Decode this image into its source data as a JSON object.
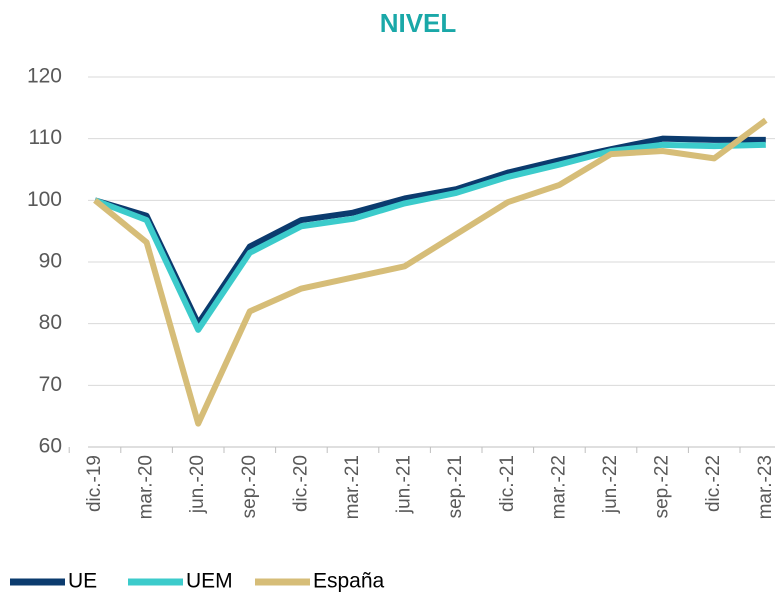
{
  "chart_data": {
    "type": "line",
    "title": "NIVEL",
    "categories": [
      "dic.-19",
      "mar.-20",
      "jun.-20",
      "sep.-20",
      "dic.-20",
      "mar.-21",
      "jun.-21",
      "sep.-21",
      "dic.-21",
      "mar.-22",
      "jun.-22",
      "sep.-22",
      "dic.-22",
      "mar.-23"
    ],
    "series": [
      {
        "name": "UE",
        "color": "#0b3b6e",
        "values": [
          100,
          97.5,
          80,
          92.5,
          96.8,
          98,
          100.3,
          101.8,
          104.5,
          106.5,
          108.3,
          110,
          109.8,
          109.8
        ]
      },
      {
        "name": "UEM",
        "color": "#3ccbcb",
        "values": [
          100,
          96.8,
          79,
          91.5,
          95.8,
          97,
          99.5,
          101.2,
          103.8,
          105.8,
          108,
          109,
          108.8,
          109
        ]
      },
      {
        "name": "España",
        "color": "#d6bd78",
        "values": [
          100,
          93.2,
          63.8,
          82,
          85.7,
          87.5,
          89.3,
          94.5,
          99.7,
          102.5,
          107.5,
          108,
          106.8,
          113
        ]
      }
    ],
    "ylim": [
      60,
      120
    ],
    "yticks": [
      60,
      70,
      80,
      90,
      100,
      110,
      120
    ],
    "grid": true,
    "legend": "bottom"
  }
}
